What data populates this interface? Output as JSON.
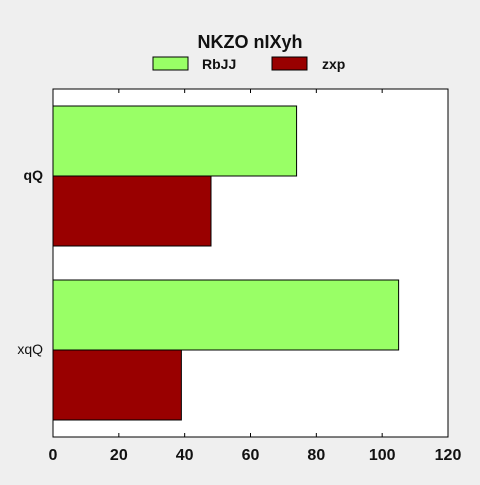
{
  "chart_data": {
    "type": "bar",
    "orientation": "horizontal",
    "title": "NKZO nIXyh",
    "categories": [
      "qQ",
      "xqQ"
    ],
    "series": [
      {
        "name": "RbJJ",
        "values": [
          74,
          105
        ],
        "color": "#99ff66"
      },
      {
        "name": "zxp",
        "values": [
          48,
          39
        ],
        "color": "#990000"
      }
    ],
    "xlim": [
      0,
      120
    ],
    "xticks": [
      "0",
      "20",
      "40",
      "60",
      "80",
      "100",
      "120"
    ],
    "grid": false,
    "legend_position": "top-center"
  }
}
